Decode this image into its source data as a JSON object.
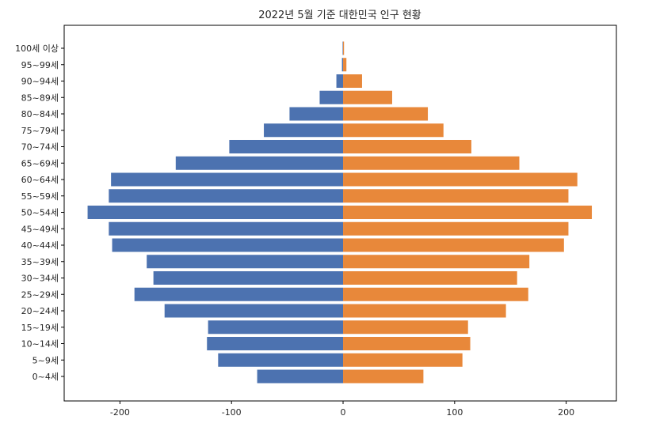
{
  "chart_data": {
    "type": "bar",
    "orientation": "horizontal",
    "title": "2022년 5월 기준 대한민국 인구 현황",
    "xlabel": "",
    "ylabel": "",
    "xlim": [
      -250,
      245
    ],
    "xticks": [
      -200,
      -100,
      0,
      100,
      200
    ],
    "grid": false,
    "categories": [
      "0~4세",
      "5~9세",
      "10~14세",
      "15~19세",
      "20~24세",
      "25~29세",
      "30~34세",
      "35~39세",
      "40~44세",
      "45~49세",
      "50~54세",
      "55~59세",
      "60~64세",
      "65~69세",
      "70~74세",
      "75~79세",
      "80~84세",
      "85~89세",
      "90~94세",
      "95~99세",
      "100세 이상"
    ],
    "series": [
      {
        "color": "#4c72b0",
        "values": [
          -77,
          -112,
          -122,
          -121,
          -160,
          -187,
          -170,
          -176,
          -207,
          -210,
          -229,
          -210,
          -208,
          -150,
          -102,
          -71,
          -48,
          -21,
          -6,
          -1,
          -0.4
        ]
      },
      {
        "color": "#e8883a",
        "values": [
          72,
          107,
          114,
          112,
          146,
          166,
          156,
          167,
          198,
          202,
          223,
          202,
          210,
          158,
          115,
          90,
          76,
          44,
          17,
          3,
          0.4
        ]
      }
    ]
  }
}
